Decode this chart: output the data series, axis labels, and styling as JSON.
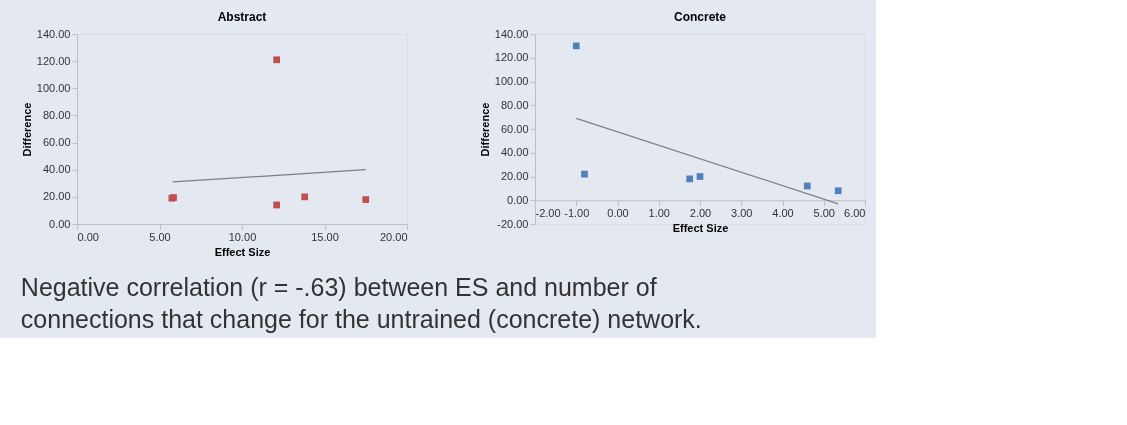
{
  "chart_data": [
    {
      "type": "scatter",
      "title": "Abstract",
      "xlabel": "Effect Size",
      "ylabel": "Difference",
      "marker": "square",
      "grid": false,
      "xlim": [
        0,
        20
      ],
      "xticks": [
        {
          "value": 0,
          "label": "0.00"
        },
        {
          "value": 5,
          "label": "5.00"
        },
        {
          "value": 10,
          "label": "10.00"
        },
        {
          "value": 15,
          "label": "15.00"
        },
        {
          "value": 20,
          "label": "20.00"
        }
      ],
      "ylim": [
        0,
        140
      ],
      "yticks": [
        {
          "value": 0,
          "label": "0.00"
        },
        {
          "value": 20,
          "label": "20.00"
        },
        {
          "value": 40,
          "label": "40.00"
        },
        {
          "value": 60,
          "label": "60.00"
        },
        {
          "value": 80,
          "label": "80.00"
        },
        {
          "value": 100,
          "label": "100.00"
        },
        {
          "value": 120,
          "label": "120.00"
        },
        {
          "value": 140,
          "label": "140.00"
        }
      ],
      "series": [
        {
          "color": "#c0504d",
          "x": [
            5.75,
            5.85,
            12.1,
            12.1,
            13.8,
            17.5
          ],
          "values": [
            19,
            19.5,
            121,
            14,
            20,
            18
          ]
        },
        {
          "type": "line",
          "marker": "none",
          "color": "#7f7f7f",
          "x": [
            5.8,
            17.5
          ],
          "values": [
            31,
            40
          ]
        }
      ]
    },
    {
      "type": "scatter",
      "title": "Concrete",
      "xlabel": "Effect Size",
      "ylabel": "Difference",
      "marker": "square",
      "grid": false,
      "xlim": [
        -2,
        6
      ],
      "xticks": [
        {
          "value": -2,
          "label": "-2.00"
        },
        {
          "value": -1,
          "label": "-1.00"
        },
        {
          "value": 0,
          "label": "0.00"
        },
        {
          "value": 1,
          "label": "1.00"
        },
        {
          "value": 2,
          "label": "2.00"
        },
        {
          "value": 3,
          "label": "3.00"
        },
        {
          "value": 4,
          "label": "4.00"
        },
        {
          "value": 5,
          "label": "5.00"
        },
        {
          "value": 6,
          "label": "6.00"
        }
      ],
      "ylim": [
        -20,
        140
      ],
      "yticks": [
        {
          "value": -20,
          "label": "-20.00"
        },
        {
          "value": 0,
          "label": "0.00"
        },
        {
          "value": 20,
          "label": "20.00"
        },
        {
          "value": 40,
          "label": "40.00"
        },
        {
          "value": 60,
          "label": "60.00"
        },
        {
          "value": 80,
          "label": "80.00"
        },
        {
          "value": 100,
          "label": "100.00"
        },
        {
          "value": 120,
          "label": "120.00"
        },
        {
          "value": 140,
          "label": "140.00"
        }
      ],
      "series": [
        {
          "color": "#4f81bd",
          "x": [
            -1.0,
            -0.8,
            1.75,
            2.0,
            4.6,
            5.35
          ],
          "values": [
            130,
            22,
            18,
            20,
            12,
            8
          ]
        },
        {
          "type": "line",
          "marker": "none",
          "color": "#7f7f7f",
          "x": [
            -1.0,
            5.35
          ],
          "values": [
            69,
            -3
          ]
        }
      ],
      "annotations": [
        "Negative correlation (r = -.63) between ES and number of connections that change for the untrained (concrete) network."
      ]
    }
  ]
}
